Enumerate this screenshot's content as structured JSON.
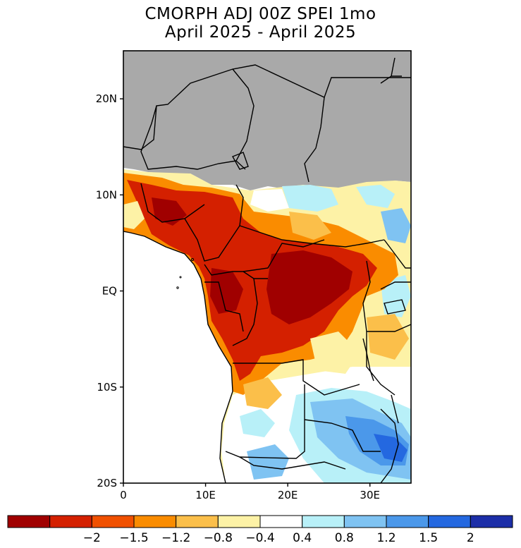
{
  "title_line1": "CMORPH ADJ 00Z SPEI 1mo",
  "title_line2": "April 2025 - April 2025",
  "map": {
    "lon_range": [
      0,
      35
    ],
    "lat_range": [
      -20,
      25
    ],
    "lat_ticks": [
      {
        "value": 20,
        "label": "20N"
      },
      {
        "value": 10,
        "label": "10N"
      },
      {
        "value": 0,
        "label": "EQ"
      },
      {
        "value": -10,
        "label": "10S"
      },
      {
        "value": -20,
        "label": "20S"
      }
    ],
    "lon_ticks": [
      {
        "value": 0,
        "label": "0"
      },
      {
        "value": 10,
        "label": "10E"
      },
      {
        "value": 20,
        "label": "20E"
      },
      {
        "value": 30,
        "label": "30E"
      }
    ],
    "masked_color": "#a9a9a9",
    "ocean_color": "#ffffff"
  },
  "colorbar": {
    "colors": [
      "#a00000",
      "#d42000",
      "#f05000",
      "#fa8c00",
      "#fbbf4a",
      "#fdf2a6",
      "#ffffff",
      "#b8f0f8",
      "#7fc3f2",
      "#4b98ea",
      "#2468e0",
      "#1c2ea8"
    ],
    "labels": [
      "-2",
      "-1.5",
      "-1.2",
      "-0.8",
      "-0.4",
      "0.4",
      "0.8",
      "1.2",
      "1.5",
      "2"
    ]
  }
}
